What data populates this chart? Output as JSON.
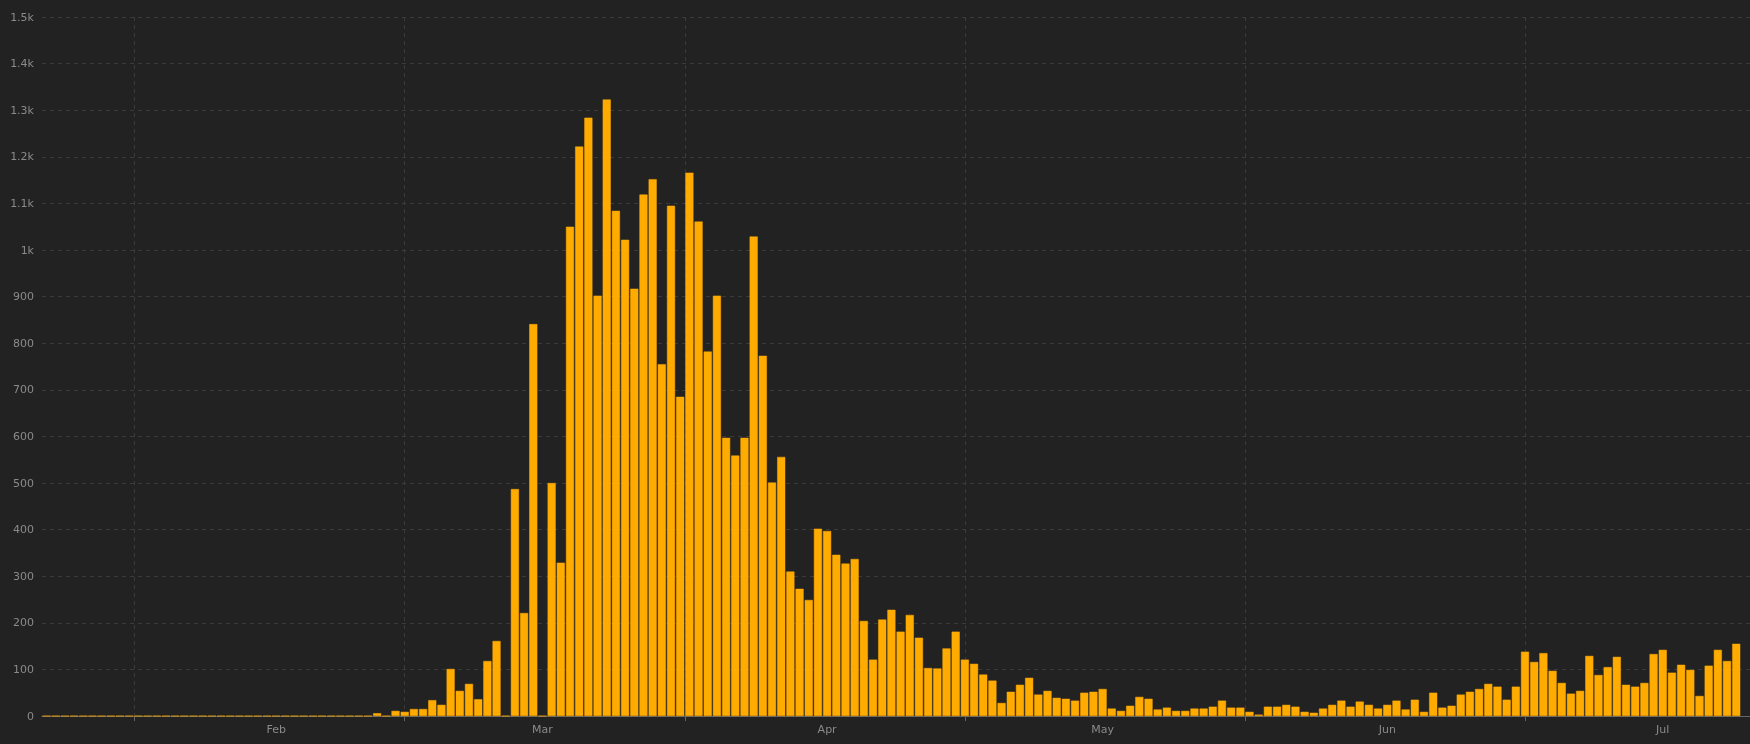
{
  "chart_data": {
    "type": "bar",
    "color": "#ffab00",
    "grid": true,
    "xlim": [
      "--01-06T12:00",
      "--07-10T12:00"
    ],
    "xticks": [
      {
        "value": "--01-16T12:00",
        "label": null
      },
      {
        "value": "--02-01",
        "label": "Feb"
      },
      {
        "value": "--02-15",
        "label": null
      },
      {
        "value": "--03-01",
        "label": "Mar"
      },
      {
        "value": "--03-16T12:00",
        "label": null
      },
      {
        "value": "--04-01",
        "label": "Apr"
      },
      {
        "value": "--04-16",
        "label": null
      },
      {
        "value": "--05-01",
        "label": "May"
      },
      {
        "value": "--05-16T12:00",
        "label": null
      },
      {
        "value": "--06-01",
        "label": "Jun"
      },
      {
        "value": "--06-16",
        "label": null
      },
      {
        "value": "--07-01",
        "label": "Jul"
      }
    ],
    "ylim": [
      0,
      1500
    ],
    "yticks": [
      0,
      100,
      200,
      300,
      400,
      500,
      600,
      700,
      800,
      900,
      {
        "value": 1000,
        "label": "1k"
      },
      {
        "value": 1100,
        "label": "1.1k"
      },
      {
        "value": 1200,
        "label": "1.2k"
      },
      {
        "value": 1300,
        "label": "1.3k"
      },
      {
        "value": 1400,
        "label": "1.4k"
      },
      {
        "value": 1500,
        "label": "1.5k"
      }
    ],
    "x": [
      "--01-07",
      "--01-08",
      "--01-09",
      "--01-10",
      "--01-11",
      "--01-12",
      "--01-13",
      "--01-14",
      "--01-15",
      "--01-16",
      "--01-17",
      "--01-18",
      "--01-19",
      "--01-20",
      "--01-21",
      "--01-22",
      "--01-23",
      "--01-24",
      "--01-25",
      "--01-26",
      "--01-27",
      "--01-28",
      "--01-29",
      "--01-30",
      "--01-31",
      "--02-01",
      "--02-02",
      "--02-03",
      "--02-04",
      "--02-05",
      "--02-06",
      "--02-07",
      "--02-08",
      "--02-09",
      "--02-10",
      "--02-11",
      "--02-12",
      "--02-13",
      "--02-14",
      "--02-15",
      "--02-16",
      "--02-17",
      "--02-18",
      "--02-19",
      "--02-20",
      "--02-21",
      "--02-22",
      "--02-23",
      "--02-24",
      "--02-25",
      "--02-26",
      "--02-27",
      "--02-28",
      "--02-29",
      "--03-01",
      "--03-02",
      "--03-03",
      "--03-04",
      "--03-05",
      "--03-06",
      "--03-07",
      "--03-08",
      "--03-09",
      "--03-10",
      "--03-11",
      "--03-12",
      "--03-13",
      "--03-14",
      "--03-15",
      "--03-16",
      "--03-17",
      "--03-18",
      "--03-19",
      "--03-20",
      "--03-21",
      "--03-22",
      "--03-23",
      "--03-24",
      "--03-25",
      "--03-26",
      "--03-27",
      "--03-28",
      "--03-29",
      "--03-30",
      "--03-31",
      "--04-01",
      "--04-02",
      "--04-03",
      "--04-04",
      "--04-05",
      "--04-06",
      "--04-07",
      "--04-08",
      "--04-09",
      "--04-10",
      "--04-11",
      "--04-12",
      "--04-13",
      "--04-14",
      "--04-15",
      "--04-16",
      "--04-17",
      "--04-18",
      "--04-19",
      "--04-20",
      "--04-21",
      "--04-22",
      "--04-23",
      "--04-24",
      "--04-25",
      "--04-26",
      "--04-27",
      "--04-28",
      "--04-29",
      "--04-30",
      "--05-01",
      "--05-02",
      "--05-03",
      "--05-04",
      "--05-05",
      "--05-06",
      "--05-07",
      "--05-08",
      "--05-09",
      "--05-10",
      "--05-11",
      "--05-12",
      "--05-13",
      "--05-14",
      "--05-15",
      "--05-16",
      "--05-17",
      "--05-18",
      "--05-19",
      "--05-20",
      "--05-21",
      "--05-22",
      "--05-23",
      "--05-24",
      "--05-25",
      "--05-26",
      "--05-27",
      "--05-28",
      "--05-29",
      "--05-30",
      "--05-31",
      "--06-01",
      "--06-02",
      "--06-03",
      "--06-04",
      "--06-05",
      "--06-06",
      "--06-07",
      "--06-08",
      "--06-09",
      "--06-10",
      "--06-11",
      "--06-12",
      "--06-13",
      "--06-14",
      "--06-15",
      "--06-16",
      "--06-17",
      "--06-18",
      "--06-19",
      "--06-20",
      "--06-21",
      "--06-22",
      "--06-23",
      "--06-24",
      "--06-25",
      "--06-26",
      "--06-27",
      "--06-28",
      "--06-29",
      "--06-30",
      "--07-01",
      "--07-02",
      "--07-03",
      "--07-04",
      "--07-05",
      "--07-06",
      "--07-07",
      "--07-08",
      "--07-09"
    ],
    "values": [
      0,
      0,
      0,
      0,
      0,
      0,
      0,
      0,
      0,
      0,
      0,
      0,
      0,
      0,
      0,
      0,
      0,
      0,
      0,
      0,
      0,
      0,
      0,
      0,
      0,
      0,
      0,
      0,
      0,
      0,
      0,
      0,
      0,
      0,
      0,
      0,
      6,
      0,
      11,
      9,
      15,
      15,
      34,
      24,
      101,
      54,
      69,
      36,
      118,
      161,
      0,
      487,
      221,
      841,
      0,
      500,
      329,
      1050,
      1222,
      1284,
      902,
      1323,
      1084,
      1022,
      917,
      1119,
      1152,
      755,
      1095,
      685,
      1166,
      1061,
      782,
      902,
      597,
      559,
      597,
      1029,
      773,
      501,
      556,
      310,
      273,
      249,
      402,
      397,
      346,
      327,
      337,
      204,
      121,
      207,
      228,
      181,
      217,
      168,
      103,
      102,
      145,
      181,
      121,
      112,
      89,
      76,
      28,
      52,
      67,
      82,
      46,
      54,
      39,
      37,
      33,
      50,
      52,
      58,
      16,
      11,
      22,
      41,
      37,
      14,
      18,
      11,
      11,
      16,
      16,
      20,
      33,
      18,
      18,
      9,
      3,
      20,
      20,
      24,
      20,
      9,
      7,
      16,
      24,
      33,
      20,
      31,
      24,
      16,
      24,
      33,
      14,
      35,
      9,
      50,
      18,
      22,
      46,
      52,
      58,
      69,
      63,
      35,
      63,
      138,
      116,
      135,
      97,
      71,
      48,
      54,
      129,
      88,
      105,
      127,
      67,
      63,
      71,
      133,
      142,
      93,
      110,
      99,
      43,
      108,
      142,
      118,
      155
    ]
  }
}
